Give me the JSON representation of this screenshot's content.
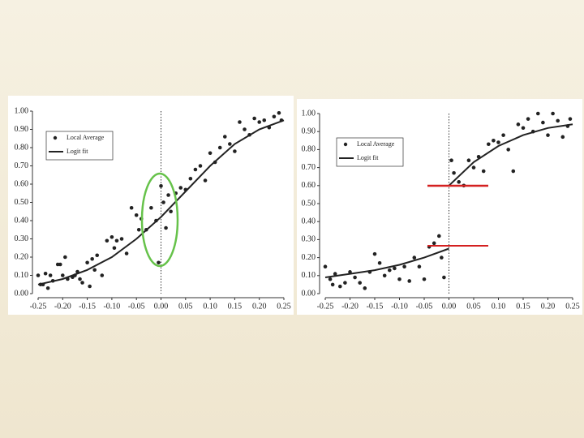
{
  "chart_data": [
    {
      "type": "scatter",
      "xlim": [
        -0.25,
        0.25
      ],
      "xticks": [
        -0.25,
        {
          "value": -0.2,
          "label": "-0.20"
        },
        -0.15,
        {
          "value": -0.1,
          "label": "-0.10"
        },
        -0.05,
        {
          "value": 0,
          "label": "0.00"
        },
        0.05,
        {
          "value": 0.1,
          "label": "0.10"
        },
        0.15,
        {
          "value": 0.2,
          "label": "0.20"
        },
        0.25
      ],
      "ylim": [
        0,
        1
      ],
      "yticks": [
        {
          "value": 0,
          "label": "0.00"
        },
        {
          "value": 0.1,
          "label": "0.10"
        },
        {
          "value": 0.2,
          "label": "0.20"
        },
        {
          "value": 0.3,
          "label": "0.30"
        },
        {
          "value": 0.4,
          "label": "0.40"
        },
        {
          "value": 0.5,
          "label": "0.50"
        },
        {
          "value": 0.6,
          "label": "0.60"
        },
        {
          "value": 0.7,
          "label": "0.70"
        },
        {
          "value": 0.8,
          "label": "0.80"
        },
        {
          "value": 0.9,
          "label": "0.90"
        },
        {
          "value": 1,
          "label": "1.00"
        }
      ],
      "series": [
        {
          "name": "Local Average",
          "color": "#222222",
          "x": [
            -0.25,
            -0.245,
            -0.24,
            -0.235,
            -0.23,
            -0.225,
            -0.22,
            -0.21,
            -0.205,
            -0.2,
            -0.195,
            -0.19,
            -0.18,
            -0.175,
            -0.17,
            -0.165,
            -0.16,
            -0.15,
            -0.145,
            -0.14,
            -0.135,
            -0.13,
            -0.12,
            -0.11,
            -0.1,
            -0.095,
            -0.09,
            -0.08,
            -0.07,
            -0.06,
            -0.05,
            -0.045,
            -0.04,
            -0.03,
            -0.02,
            -0.01,
            -0.005,
            0,
            0.005,
            0.01,
            0.015,
            0.02,
            0.03,
            0.04,
            0.05,
            0.06,
            0.07,
            0.08,
            0.09,
            0.1,
            0.11,
            0.12,
            0.13,
            0.14,
            0.15,
            0.16,
            0.17,
            0.18,
            0.19,
            0.2,
            0.21,
            0.22,
            0.23,
            0.24,
            0.245
          ],
          "values": [
            0.1,
            0.05,
            0.05,
            0.11,
            0.03,
            0.1,
            0.07,
            0.16,
            0.16,
            0.1,
            0.2,
            0.08,
            0.09,
            0.1,
            0.12,
            0.08,
            0.06,
            0.17,
            0.04,
            0.19,
            0.13,
            0.21,
            0.1,
            0.29,
            0.31,
            0.25,
            0.29,
            0.3,
            0.22,
            0.47,
            0.43,
            0.35,
            0.41,
            0.35,
            0.47,
            0.4,
            0.17,
            0.59,
            0.5,
            0.36,
            0.54,
            0.45,
            0.55,
            0.58,
            0.57,
            0.63,
            0.68,
            0.7,
            0.62,
            0.77,
            0.72,
            0.8,
            0.86,
            0.82,
            0.78,
            0.94,
            0.9,
            0.87,
            0.96,
            0.94,
            0.95,
            0.91,
            0.97,
            0.99,
            0.95
          ]
        },
        {
          "name": "Logit fit",
          "color": "#222222",
          "x": [
            -0.25,
            -0.2,
            -0.15,
            -0.1,
            -0.05,
            0,
            0.05,
            0.1,
            0.15,
            0.2,
            0.25
          ],
          "values": [
            0.05,
            0.08,
            0.13,
            0.2,
            0.3,
            0.42,
            0.56,
            0.7,
            0.82,
            0.9,
            0.95
          ]
        }
      ]
    },
    {
      "type": "scatter",
      "xlim": [
        -0.25,
        0.25
      ],
      "xticks": [
        -0.25,
        {
          "value": -0.2,
          "label": "-0.20"
        },
        -0.15,
        {
          "value": -0.1,
          "label": "-0.10"
        },
        -0.05,
        {
          "value": 0,
          "label": "0.00"
        },
        0.05,
        {
          "value": 0.1,
          "label": "0.10"
        },
        0.15,
        {
          "value": 0.2,
          "label": "0.20"
        },
        0.25
      ],
      "ylim": [
        0,
        1
      ],
      "yticks": [
        {
          "value": 0,
          "label": "0.00"
        },
        {
          "value": 0.1,
          "label": "0.10"
        },
        {
          "value": 0.2,
          "label": "0.20"
        },
        {
          "value": 0.3,
          "label": "0.30"
        },
        {
          "value": 0.4,
          "label": "0.40"
        },
        {
          "value": 0.5,
          "label": "0.50"
        },
        {
          "value": 0.6,
          "label": "0.60"
        },
        {
          "value": 0.7,
          "label": "0.70"
        },
        {
          "value": 0.8,
          "label": "0.80"
        },
        {
          "value": 0.9,
          "label": "0.90"
        },
        {
          "value": 1,
          "label": "1.00"
        }
      ],
      "series": [
        {
          "name": "Local Average",
          "color": "#222222",
          "x": [
            -0.25,
            -0.24,
            -0.235,
            -0.23,
            -0.22,
            -0.21,
            -0.2,
            -0.19,
            -0.18,
            -0.17,
            -0.16,
            -0.15,
            -0.14,
            -0.13,
            -0.12,
            -0.11,
            -0.1,
            -0.09,
            -0.08,
            -0.07,
            -0.06,
            -0.05,
            -0.04,
            -0.03,
            -0.02,
            -0.015,
            -0.01,
            0.005,
            0.01,
            0.02,
            0.03,
            0.04,
            0.05,
            0.06,
            0.07,
            0.08,
            0.09,
            0.1,
            0.11,
            0.12,
            0.13,
            0.14,
            0.15,
            0.16,
            0.17,
            0.18,
            0.19,
            0.2,
            0.21,
            0.22,
            0.23,
            0.24,
            0.245
          ],
          "values": [
            0.15,
            0.08,
            0.05,
            0.11,
            0.04,
            0.06,
            0.12,
            0.09,
            0.06,
            0.03,
            0.12,
            0.22,
            0.17,
            0.1,
            0.13,
            0.14,
            0.08,
            0.15,
            0.07,
            0.2,
            0.15,
            0.08,
            0.26,
            0.28,
            0.32,
            0.2,
            0.09,
            0.74,
            0.67,
            0.62,
            0.6,
            0.74,
            0.7,
            0.76,
            0.68,
            0.83,
            0.85,
            0.84,
            0.88,
            0.8,
            0.68,
            0.94,
            0.92,
            0.97,
            0.9,
            1,
            0.95,
            0.88,
            1,
            0.96,
            0.87,
            0.93,
            0.97
          ]
        },
        {
          "name": "Logit fit",
          "color": "#222222",
          "x": [
            -0.25,
            -0.2,
            -0.15,
            -0.1,
            -0.05,
            0,
            0,
            0,
            0.05,
            0.1,
            0.15,
            0.2,
            0.25
          ],
          "values": [
            0.09,
            0.11,
            0.13,
            0.16,
            0.2,
            0.25,
            null,
            0.6,
            0.73,
            0.82,
            0.88,
            0.92,
            0.94
          ]
        }
      ]
    }
  ]
}
